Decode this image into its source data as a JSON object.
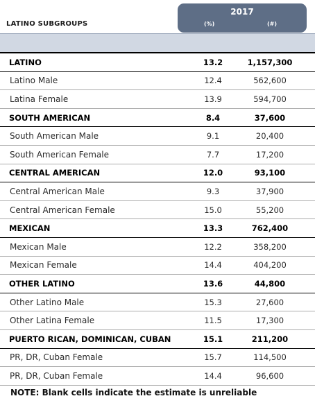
{
  "header": {
    "subgroups_title": "LATINO SUBGROUPS",
    "year": "2017",
    "col_pct": "(%)",
    "col_num": "(#)"
  },
  "colors": {
    "tab": "#5e6e86",
    "band": "#d1d8e3"
  },
  "rows": [
    {
      "label": "LATINO",
      "pct": "13.2",
      "num": "1,157,300",
      "group": true
    },
    {
      "label": "Latino Male",
      "pct": "12.4",
      "num": "562,600",
      "group": false
    },
    {
      "label": "Latina Female",
      "pct": "13.9",
      "num": "594,700",
      "group": false
    },
    {
      "label": "SOUTH AMERICAN",
      "pct": "8.4",
      "num": "37,600",
      "group": true
    },
    {
      "label": "South American Male",
      "pct": "9.1",
      "num": "20,400",
      "group": false
    },
    {
      "label": "South American Female",
      "pct": "7.7",
      "num": "17,200",
      "group": false
    },
    {
      "label": "CENTRAL AMERICAN",
      "pct": "12.0",
      "num": "93,100",
      "group": true
    },
    {
      "label": "Central American Male",
      "pct": "9.3",
      "num": "37,900",
      "group": false
    },
    {
      "label": "Central American Female",
      "pct": "15.0",
      "num": "55,200",
      "group": false
    },
    {
      "label": "MEXICAN",
      "pct": "13.3",
      "num": "762,400",
      "group": true
    },
    {
      "label": "Mexican Male",
      "pct": "12.2",
      "num": "358,200",
      "group": false
    },
    {
      "label": "Mexican Female",
      "pct": "14.4",
      "num": "404,200",
      "group": false
    },
    {
      "label": "OTHER LATINO",
      "pct": "13.6",
      "num": "44,800",
      "group": true
    },
    {
      "label": "Other Latino Male",
      "pct": "15.3",
      "num": "27,600",
      "group": false
    },
    {
      "label": "Other Latina Female",
      "pct": "11.5",
      "num": "17,300",
      "group": false
    },
    {
      "label": "PUERTO RICAN, DOMINICAN, CUBAN",
      "pct": "15.1",
      "num": "211,200",
      "group": true
    },
    {
      "label": "PR, DR, Cuban Female",
      "pct": "15.7",
      "num": "114,500",
      "group": false
    },
    {
      "label": "PR, DR, Cuban Female",
      "pct": "14.4",
      "num": "96,600",
      "group": false
    }
  ],
  "note": "NOTE: Blank cells indicate the estimate is unreliable"
}
